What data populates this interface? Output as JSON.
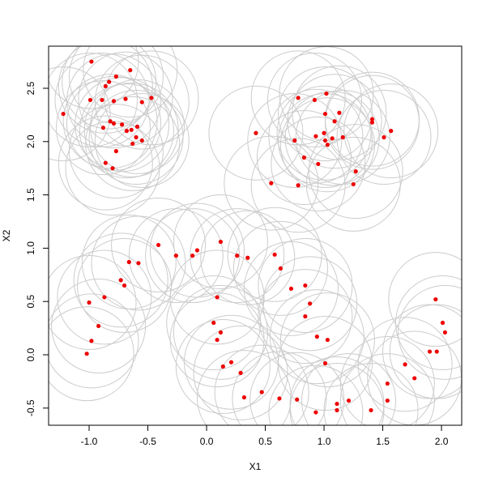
{
  "chart_data": {
    "type": "scatter",
    "x_label": "X1",
    "y_label": "X2",
    "xlim": [
      -1.345,
      2.172
    ],
    "ylim": [
      -0.661,
      2.895
    ],
    "xticks": [
      {
        "value": -1,
        "label": "-1.0"
      },
      -0.5,
      {
        "value": 0,
        "label": "0.0"
      },
      0.5,
      {
        "value": 1,
        "label": "1.0"
      },
      1.5,
      {
        "value": 2,
        "label": "2.0"
      }
    ],
    "yticks": [
      -0.5,
      {
        "value": 0,
        "label": "0.0"
      },
      0.5,
      {
        "value": 1,
        "label": "1.0"
      },
      1.5,
      {
        "value": 2,
        "label": "2.0"
      },
      2.5
    ],
    "color": "#ee0000",
    "circle_color": "#cccccc",
    "x": [
      -0.98,
      -1.22,
      -0.99,
      -0.89,
      -0.83,
      -0.86,
      -0.77,
      -0.65,
      -0.79,
      -0.69,
      -0.55,
      -0.47,
      -0.82,
      -0.79,
      -0.88,
      -0.72,
      -0.68,
      -0.64,
      -0.59,
      -0.6,
      -0.55,
      -0.63,
      -0.77,
      -0.86,
      -0.8,
      0.78,
      0.92,
      1.02,
      0.42,
      0.75,
      1.01,
      1.13,
      1.09,
      0.93,
      1.0,
      1.01,
      1.03,
      1.07,
      1.16,
      1.41,
      1.41,
      1.57,
      1.51,
      0.83,
      0.95,
      1.27,
      1.25,
      0.78,
      0.55,
      -0.41,
      -0.08,
      -0.12,
      -0.26,
      0.12,
      0.26,
      0.35,
      0.58,
      0.63,
      -0.66,
      -0.58,
      -0.73,
      -0.7,
      -0.87,
      -1.0,
      -0.92,
      -0.98,
      -1.02,
      0.09,
      0.06,
      0.12,
      0.09,
      0.72,
      0.84,
      0.88,
      0.84,
      0.94,
      1.03,
      0.21,
      0.14,
      0.29,
      0.32,
      0.47,
      0.62,
      0.77,
      1.01,
      0.93,
      1.11,
      1.11,
      1.21,
      1.4,
      1.54,
      1.54,
      1.69,
      1.77,
      1.95,
      2.01,
      2.03,
      1.9,
      1.96
    ],
    "values": [
      2.75,
      2.26,
      2.39,
      2.39,
      2.56,
      2.52,
      2.61,
      2.67,
      2.38,
      2.4,
      2.37,
      2.41,
      2.19,
      2.17,
      2.13,
      2.16,
      2.1,
      2.11,
      2.14,
      2.04,
      2.01,
      1.98,
      1.91,
      1.8,
      1.75,
      2.41,
      2.39,
      2.45,
      2.08,
      2.01,
      2.26,
      2.27,
      2.19,
      2.05,
      2.08,
      2.01,
      1.97,
      2.03,
      2.04,
      2.21,
      2.18,
      2.1,
      2.04,
      1.85,
      1.79,
      1.72,
      1.6,
      1.59,
      1.61,
      1.03,
      0.98,
      0.93,
      0.93,
      1.06,
      0.93,
      0.91,
      0.94,
      0.81,
      0.87,
      0.86,
      0.7,
      0.65,
      0.54,
      0.49,
      0.27,
      0.13,
      0.01,
      0.54,
      0.3,
      0.21,
      0.14,
      0.62,
      0.65,
      0.48,
      0.36,
      0.17,
      0.14,
      -0.07,
      -0.11,
      -0.17,
      -0.4,
      -0.35,
      -0.41,
      -0.42,
      -0.08,
      -0.54,
      -0.46,
      -0.52,
      -0.43,
      -0.52,
      -0.43,
      -0.27,
      -0.09,
      -0.22,
      0.52,
      0.3,
      0.21,
      0.03,
      0.03
    ]
  }
}
